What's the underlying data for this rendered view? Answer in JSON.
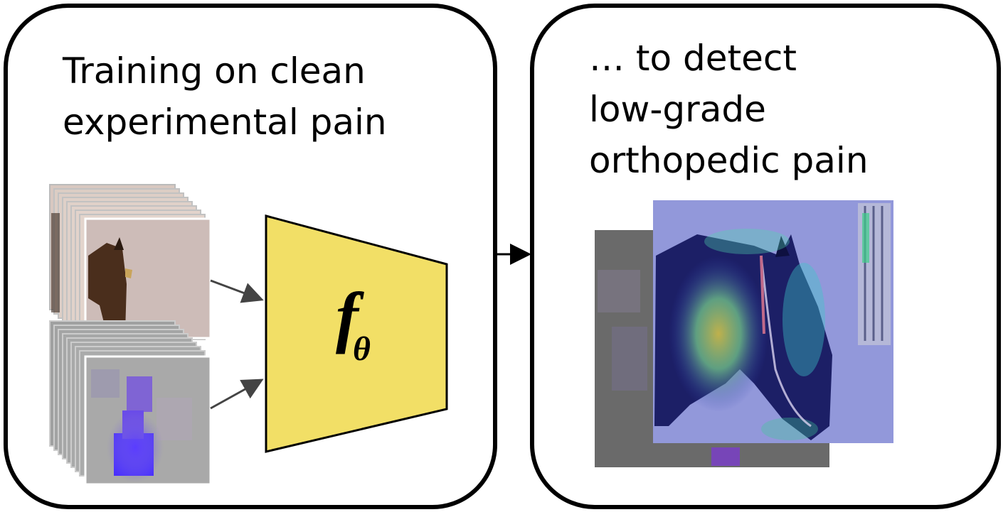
{
  "panels": {
    "left": {
      "title": "Training on clean\nexperimental pain"
    },
    "right": {
      "title": "… to detect\nlow-grade\northopedic pain"
    }
  },
  "model": {
    "function_symbol": "f",
    "subscript": "θ"
  },
  "colors": {
    "panel_border": "#000000",
    "trapezoid_fill": "#f2df66",
    "arrow": "#444444",
    "background": "#ffffff"
  },
  "stacks": {
    "rgb_frames": {
      "description_icon": "horse-rgb-frame-stack-icon"
    },
    "flow_frames": {
      "description_icon": "optical-flow-frame-stack-icon"
    }
  },
  "result": {
    "description_icon": "horse-heatmap-overlay-icon"
  }
}
